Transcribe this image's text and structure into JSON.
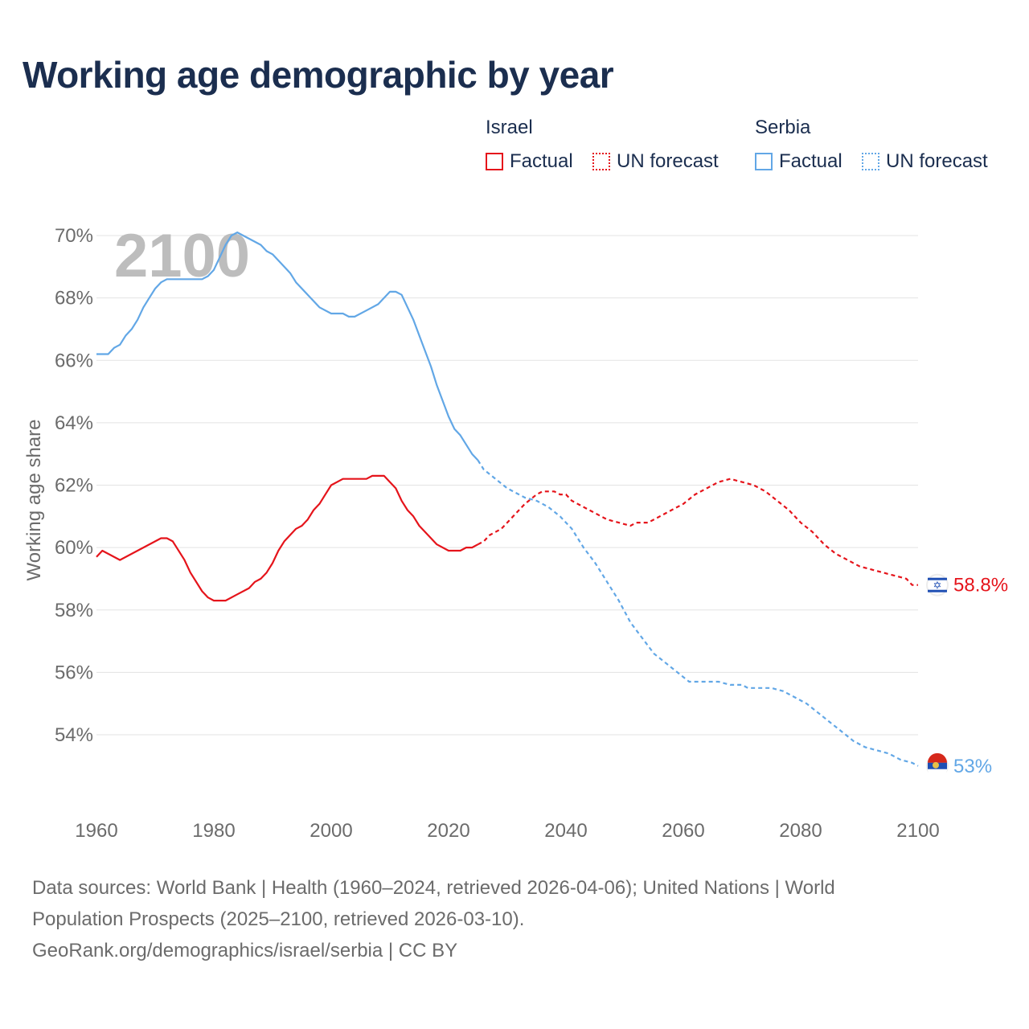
{
  "title": "Working age demographic by year",
  "legend": {
    "groups": [
      {
        "country": "Israel",
        "factual_label": "Factual",
        "forecast_label": "UN forecast",
        "color": "#e5141b"
      },
      {
        "country": "Serbia",
        "factual_label": "Factual",
        "forecast_label": "UN forecast",
        "color": "#62a7e6"
      }
    ]
  },
  "year_watermark": "2100",
  "sources": {
    "line1": "Data sources: World Bank | Health (1960–2024, retrieved 2026-04-06); United Nations | World",
    "line2": "Population Prospects (2025–2100, retrieved 2026-03-10).",
    "line3": "GeoRank.org/demographics/israel/serbia | CC BY"
  },
  "chart_data": {
    "type": "line",
    "title": "Working age demographic by year",
    "xlabel": "",
    "ylabel": "Working age share",
    "xlim": [
      1960,
      2100
    ],
    "ylim": [
      52,
      70.5
    ],
    "x_ticks": [
      1960,
      1980,
      2000,
      2020,
      2040,
      2060,
      2080,
      2100
    ],
    "x_tick_labels": [
      "1960",
      "1980",
      "2000",
      "2020",
      "2040",
      "2060",
      "2080",
      "2100"
    ],
    "y_ticks": [
      54,
      56,
      58,
      60,
      62,
      64,
      66,
      68,
      70
    ],
    "y_tick_labels": [
      "54%",
      "56%",
      "58%",
      "60%",
      "62%",
      "64%",
      "66%",
      "68%",
      "70%"
    ],
    "grid": true,
    "forecast_start": 2025,
    "series": [
      {
        "name": "Israel",
        "color": "#e5141b",
        "end_label": "58.8%",
        "points": [
          [
            1960,
            59.7
          ],
          [
            1961,
            59.9
          ],
          [
            1962,
            59.8
          ],
          [
            1964,
            59.6
          ],
          [
            1966,
            59.8
          ],
          [
            1968,
            60.0
          ],
          [
            1970,
            60.2
          ],
          [
            1971,
            60.3
          ],
          [
            1972,
            60.3
          ],
          [
            1973,
            60.2
          ],
          [
            1975,
            59.6
          ],
          [
            1976,
            59.2
          ],
          [
            1978,
            58.6
          ],
          [
            1979,
            58.4
          ],
          [
            1980,
            58.3
          ],
          [
            1982,
            58.3
          ],
          [
            1984,
            58.5
          ],
          [
            1986,
            58.7
          ],
          [
            1987,
            58.9
          ],
          [
            1988,
            59.0
          ],
          [
            1989,
            59.2
          ],
          [
            1990,
            59.5
          ],
          [
            1991,
            59.9
          ],
          [
            1992,
            60.2
          ],
          [
            1994,
            60.6
          ],
          [
            1995,
            60.7
          ],
          [
            1996,
            60.9
          ],
          [
            1997,
            61.2
          ],
          [
            1998,
            61.4
          ],
          [
            1999,
            61.7
          ],
          [
            2000,
            62.0
          ],
          [
            2002,
            62.2
          ],
          [
            2006,
            62.2
          ],
          [
            2007,
            62.3
          ],
          [
            2009,
            62.3
          ],
          [
            2011,
            61.9
          ],
          [
            2012,
            61.5
          ],
          [
            2013,
            61.2
          ],
          [
            2014,
            61.0
          ],
          [
            2015,
            60.7
          ],
          [
            2017,
            60.3
          ],
          [
            2018,
            60.1
          ],
          [
            2020,
            59.9
          ],
          [
            2022,
            59.9
          ],
          [
            2023,
            60.0
          ],
          [
            2024,
            60.0
          ],
          [
            2025,
            60.1
          ],
          [
            2026,
            60.2
          ],
          [
            2027,
            60.4
          ],
          [
            2029,
            60.6
          ],
          [
            2031,
            61.0
          ],
          [
            2033,
            61.4
          ],
          [
            2035,
            61.7
          ],
          [
            2036,
            61.8
          ],
          [
            2038,
            61.8
          ],
          [
            2039,
            61.7
          ],
          [
            2040,
            61.7
          ],
          [
            2041,
            61.5
          ],
          [
            2043,
            61.3
          ],
          [
            2045,
            61.1
          ],
          [
            2047,
            60.9
          ],
          [
            2049,
            60.8
          ],
          [
            2051,
            60.7
          ],
          [
            2052,
            60.8
          ],
          [
            2054,
            60.8
          ],
          [
            2056,
            61.0
          ],
          [
            2058,
            61.2
          ],
          [
            2060,
            61.4
          ],
          [
            2062,
            61.7
          ],
          [
            2064,
            61.9
          ],
          [
            2066,
            62.1
          ],
          [
            2068,
            62.2
          ],
          [
            2070,
            62.1
          ],
          [
            2072,
            62.0
          ],
          [
            2074,
            61.8
          ],
          [
            2076,
            61.5
          ],
          [
            2078,
            61.2
          ],
          [
            2080,
            60.8
          ],
          [
            2082,
            60.5
          ],
          [
            2084,
            60.1
          ],
          [
            2086,
            59.8
          ],
          [
            2088,
            59.6
          ],
          [
            2090,
            59.4
          ],
          [
            2092,
            59.3
          ],
          [
            2094,
            59.2
          ],
          [
            2096,
            59.1
          ],
          [
            2098,
            59.0
          ],
          [
            2099,
            58.8
          ],
          [
            2100,
            58.8
          ]
        ]
      },
      {
        "name": "Serbia",
        "color": "#62a7e6",
        "end_label": "53%",
        "points": [
          [
            1960,
            66.2
          ],
          [
            1962,
            66.2
          ],
          [
            1963,
            66.4
          ],
          [
            1964,
            66.5
          ],
          [
            1965,
            66.8
          ],
          [
            1966,
            67.0
          ],
          [
            1967,
            67.3
          ],
          [
            1968,
            67.7
          ],
          [
            1969,
            68.0
          ],
          [
            1970,
            68.3
          ],
          [
            1971,
            68.5
          ],
          [
            1972,
            68.6
          ],
          [
            1974,
            68.6
          ],
          [
            1976,
            68.6
          ],
          [
            1978,
            68.6
          ],
          [
            1979,
            68.7
          ],
          [
            1980,
            68.9
          ],
          [
            1981,
            69.3
          ],
          [
            1982,
            69.7
          ],
          [
            1983,
            70.0
          ],
          [
            1984,
            70.1
          ],
          [
            1986,
            69.9
          ],
          [
            1988,
            69.7
          ],
          [
            1989,
            69.5
          ],
          [
            1990,
            69.4
          ],
          [
            1991,
            69.2
          ],
          [
            1993,
            68.8
          ],
          [
            1994,
            68.5
          ],
          [
            1996,
            68.1
          ],
          [
            1998,
            67.7
          ],
          [
            2000,
            67.5
          ],
          [
            2002,
            67.5
          ],
          [
            2003,
            67.4
          ],
          [
            2004,
            67.4
          ],
          [
            2006,
            67.6
          ],
          [
            2008,
            67.8
          ],
          [
            2010,
            68.2
          ],
          [
            2011,
            68.2
          ],
          [
            2012,
            68.1
          ],
          [
            2014,
            67.3
          ],
          [
            2015,
            66.8
          ],
          [
            2017,
            65.8
          ],
          [
            2018,
            65.2
          ],
          [
            2020,
            64.2
          ],
          [
            2021,
            63.8
          ],
          [
            2022,
            63.6
          ],
          [
            2024,
            63.0
          ],
          [
            2025,
            62.8
          ],
          [
            2026,
            62.5
          ],
          [
            2028,
            62.2
          ],
          [
            2030,
            61.9
          ],
          [
            2032,
            61.7
          ],
          [
            2033,
            61.6
          ],
          [
            2035,
            61.5
          ],
          [
            2037,
            61.3
          ],
          [
            2039,
            61.0
          ],
          [
            2041,
            60.6
          ],
          [
            2043,
            60.0
          ],
          [
            2045,
            59.5
          ],
          [
            2047,
            58.9
          ],
          [
            2049,
            58.3
          ],
          [
            2051,
            57.6
          ],
          [
            2053,
            57.1
          ],
          [
            2055,
            56.6
          ],
          [
            2057,
            56.3
          ],
          [
            2059,
            56.0
          ],
          [
            2061,
            55.7
          ],
          [
            2063,
            55.7
          ],
          [
            2066,
            55.7
          ],
          [
            2068,
            55.6
          ],
          [
            2070,
            55.6
          ],
          [
            2071,
            55.5
          ],
          [
            2073,
            55.5
          ],
          [
            2075,
            55.5
          ],
          [
            2077,
            55.4
          ],
          [
            2079,
            55.2
          ],
          [
            2081,
            55.0
          ],
          [
            2083,
            54.7
          ],
          [
            2085,
            54.4
          ],
          [
            2087,
            54.1
          ],
          [
            2089,
            53.8
          ],
          [
            2091,
            53.6
          ],
          [
            2093,
            53.5
          ],
          [
            2095,
            53.4
          ],
          [
            2097,
            53.2
          ],
          [
            2099,
            53.1
          ],
          [
            2100,
            53.0
          ]
        ]
      }
    ]
  }
}
